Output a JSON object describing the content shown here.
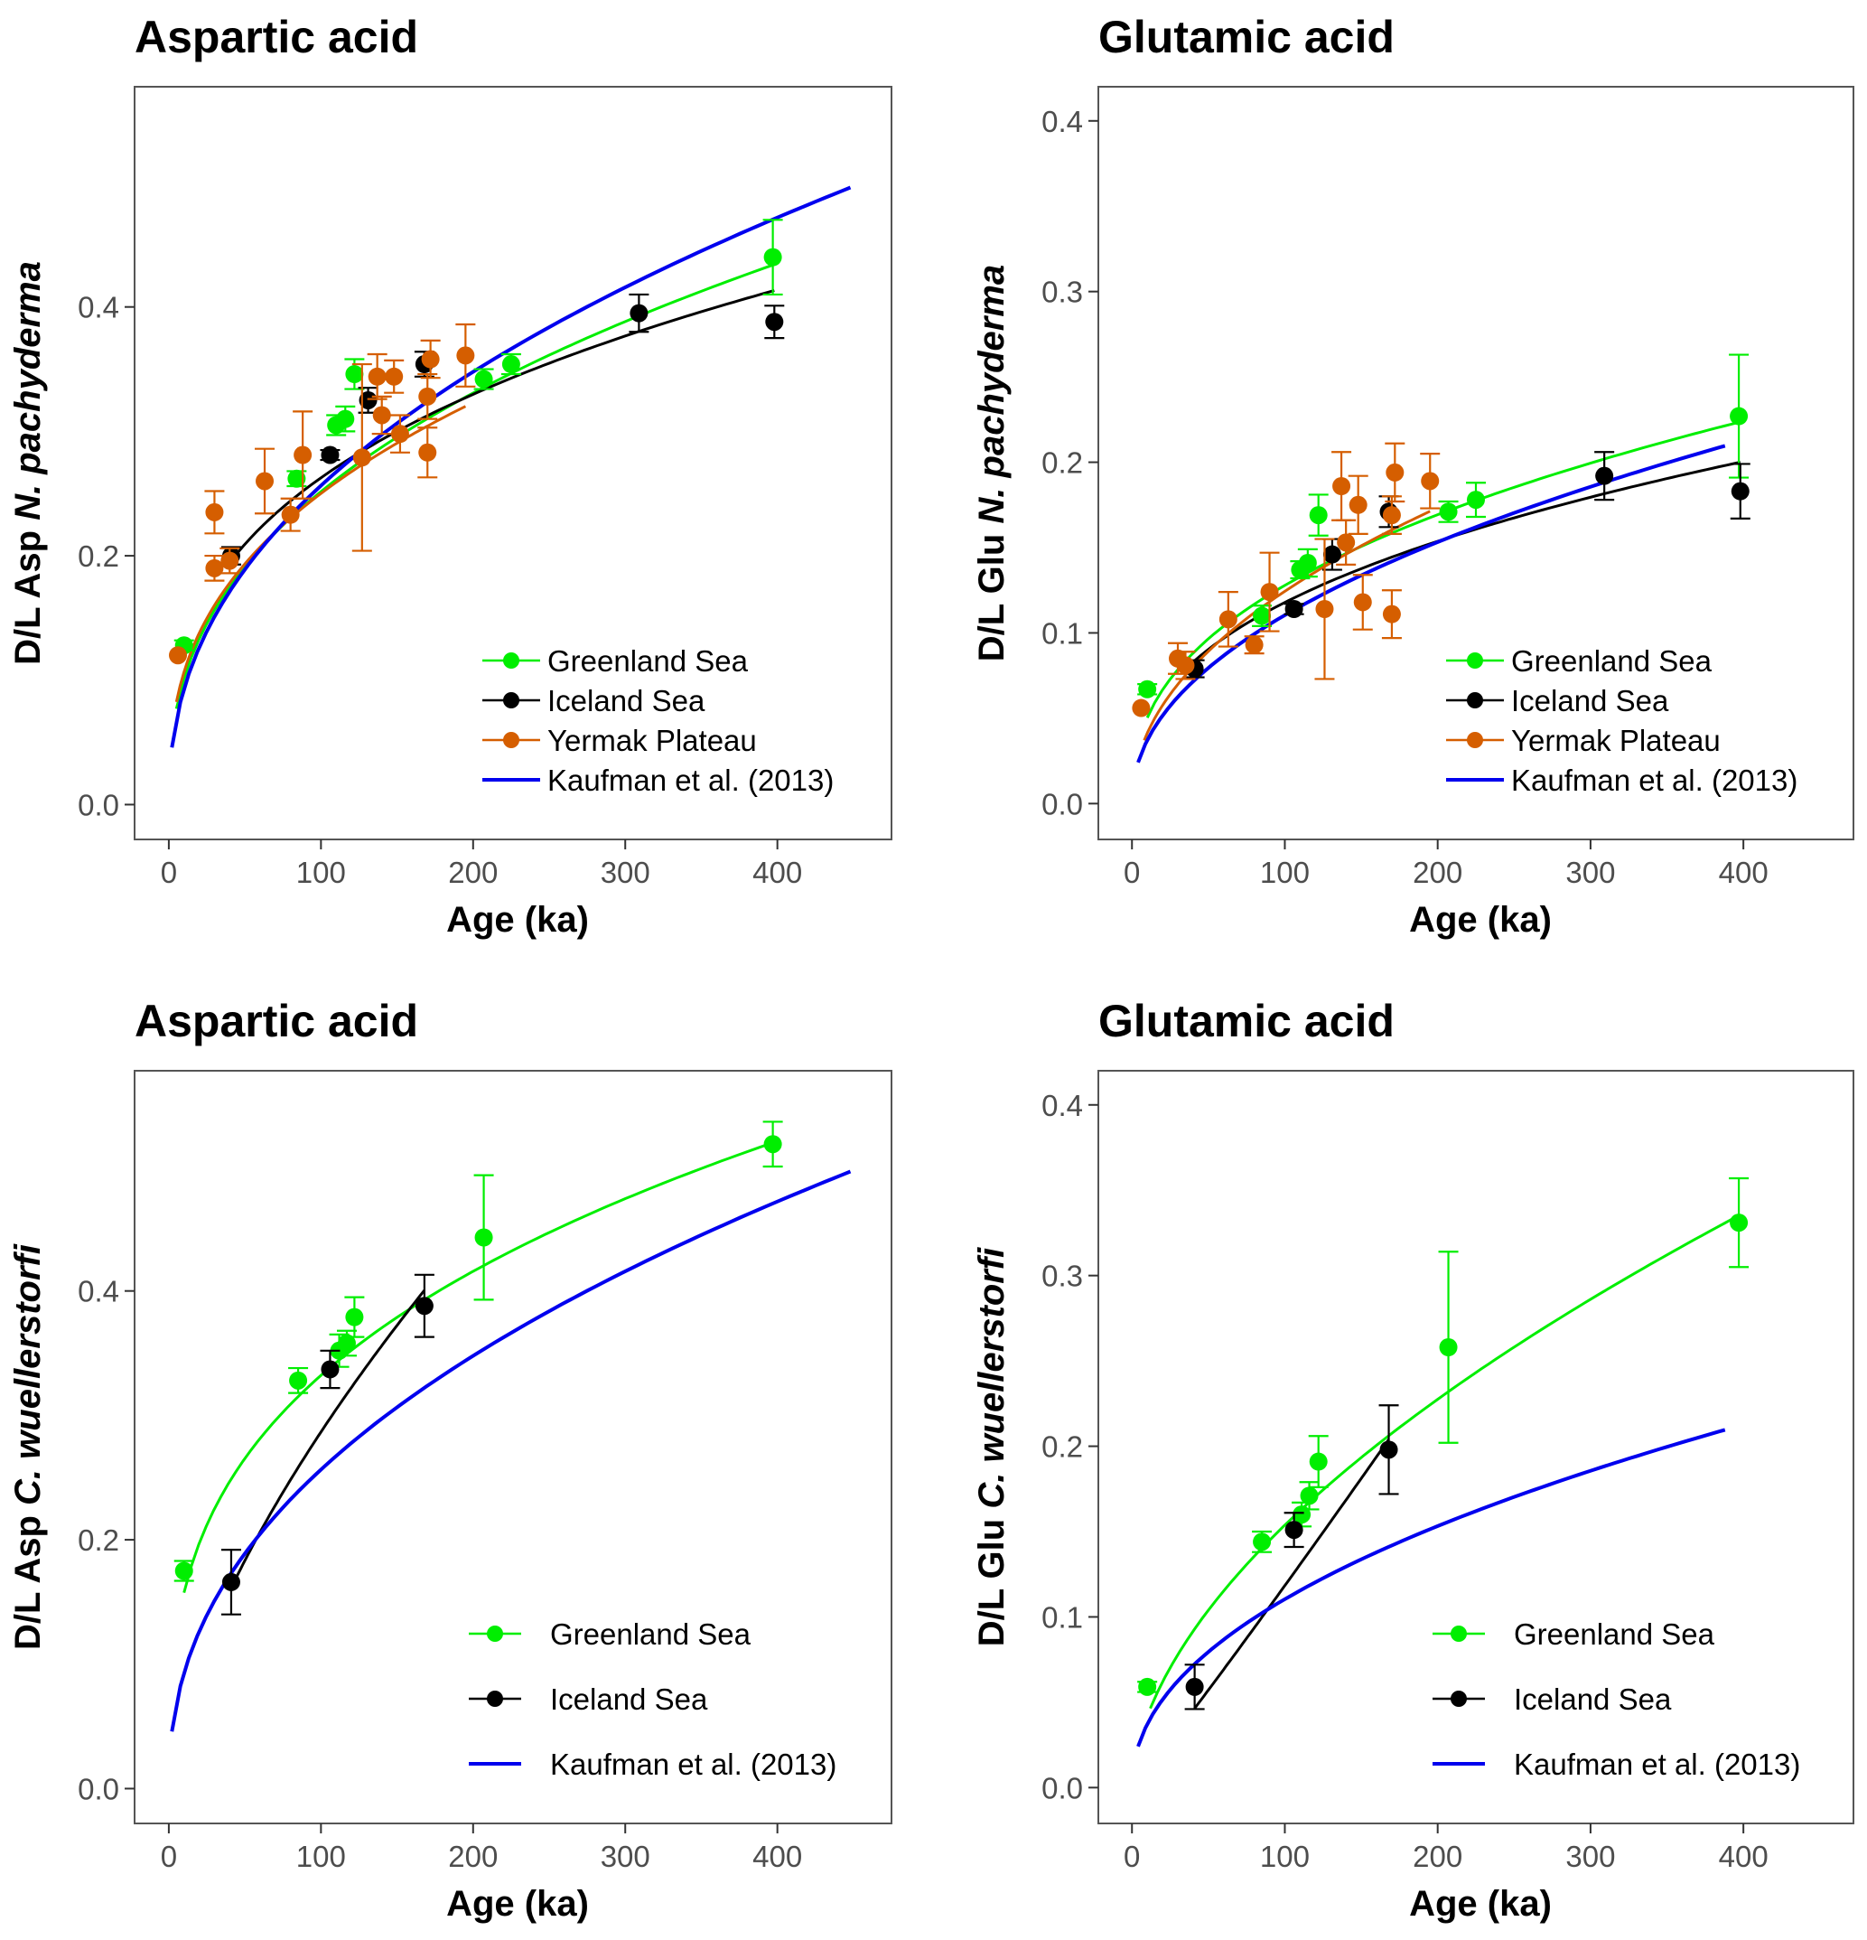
{
  "colors": {
    "greenland": "#00ee00",
    "iceland": "#000000",
    "yermak": "#d55e00",
    "kaufman": "#0000ee",
    "tick_text": "#4d4d4d",
    "frame": "#555555"
  },
  "chart_data": [
    {
      "id": "asp-npachyderma",
      "type": "scatter",
      "title": "Aspartic acid",
      "xlabel": "Age (ka)",
      "ylabel_prefix": "D/L Asp ",
      "ylabel_species": "N. pachyderma",
      "xlim": [
        -22.5,
        475
      ],
      "ylim": [
        -0.028,
        0.577
      ],
      "xticks": [
        0,
        100,
        200,
        300,
        400
      ],
      "xtick_labels": [
        "0",
        "100",
        "200",
        "300",
        "400"
      ],
      "yticks": [
        0.0,
        0.2,
        0.4
      ],
      "ytick_labels": [
        "0.0",
        "0.2",
        "0.4"
      ],
      "legend_position": "bottom-right",
      "legend_style": "compact",
      "series": [
        {
          "name": "Greenland Sea",
          "key": "greenland",
          "kind": "points",
          "points": [
            {
              "x": 10,
              "y": 0.128,
              "err": 0.004
            },
            {
              "x": 84,
              "y": 0.262,
              "err": 0.006
            },
            {
              "x": 110,
              "y": 0.305,
              "err": 0.008
            },
            {
              "x": 116,
              "y": 0.31,
              "err": 0.01
            },
            {
              "x": 122,
              "y": 0.346,
              "err": 0.012
            },
            {
              "x": 207,
              "y": 0.342,
              "err": 0.008
            },
            {
              "x": 225,
              "y": 0.354,
              "err": 0.008
            },
            {
              "x": 397,
              "y": 0.44,
              "err": 0.03
            }
          ],
          "fit": {
            "a": 0.0408,
            "b": 0.395,
            "x0": 5,
            "x1": 397
          }
        },
        {
          "name": "Iceland Sea",
          "key": "iceland",
          "kind": "points",
          "points": [
            {
              "x": 41,
              "y": 0.2,
              "err": 0.007
            },
            {
              "x": 106,
              "y": 0.281,
              "err": 0.004
            },
            {
              "x": 131,
              "y": 0.325,
              "err": 0.01
            },
            {
              "x": 168,
              "y": 0.354,
              "err": 0.01
            },
            {
              "x": 309,
              "y": 0.395,
              "err": 0.015
            },
            {
              "x": 398,
              "y": 0.388,
              "err": 0.013
            }
          ],
          "fit": {
            "a": 0.058,
            "b": 0.328,
            "x0": 40,
            "x1": 398
          }
        },
        {
          "name": "Yermak Plateau",
          "key": "yermak",
          "kind": "points",
          "points": [
            {
              "x": 6,
              "y": 0.12,
              "err": 0.0
            },
            {
              "x": 30,
              "y": 0.19,
              "err": 0.01
            },
            {
              "x": 30,
              "y": 0.235,
              "err": 0.017
            },
            {
              "x": 40,
              "y": 0.196,
              "err": 0.01
            },
            {
              "x": 63,
              "y": 0.26,
              "err": 0.026
            },
            {
              "x": 80,
              "y": 0.233,
              "err": 0.013
            },
            {
              "x": 88,
              "y": 0.281,
              "err": 0.035
            },
            {
              "x": 127,
              "y": 0.279,
              "err": 0.075
            },
            {
              "x": 137,
              "y": 0.344,
              "err": 0.018
            },
            {
              "x": 140,
              "y": 0.313,
              "err": 0.015
            },
            {
              "x": 148,
              "y": 0.344,
              "err": 0.013
            },
            {
              "x": 152,
              "y": 0.298,
              "err": 0.015
            },
            {
              "x": 170,
              "y": 0.283,
              "err": 0.02
            },
            {
              "x": 170,
              "y": 0.328,
              "err": 0.018
            },
            {
              "x": 172,
              "y": 0.358,
              "err": 0.015
            },
            {
              "x": 195,
              "y": 0.361,
              "err": 0.025
            }
          ],
          "fit": {
            "a": 0.0455,
            "b": 0.37,
            "x0": 5,
            "x1": 195
          }
        },
        {
          "name": "Kaufman et al. (2013)",
          "key": "kaufman",
          "kind": "curve",
          "fit": {
            "a": 0.0338,
            "b": 0.44,
            "x0": 2,
            "x1": 448
          }
        }
      ]
    },
    {
      "id": "glu-npachyderma",
      "type": "scatter",
      "title": "Glutamic acid",
      "xlabel": "Age (ka)",
      "ylabel_prefix": "D/L Glu ",
      "ylabel_species": "N. pachyderma",
      "xlim": [
        -22,
        472
      ],
      "ylim": [
        -0.021,
        0.42
      ],
      "xticks": [
        0,
        100,
        200,
        300,
        400
      ],
      "xtick_labels": [
        "0",
        "100",
        "200",
        "300",
        "400"
      ],
      "yticks": [
        0.0,
        0.1,
        0.2,
        0.3,
        0.4
      ],
      "ytick_labels": [
        "0.0",
        "0.1",
        "0.2",
        "0.3",
        "0.4"
      ],
      "legend_position": "bottom-right",
      "legend_style": "compact",
      "series": [
        {
          "name": "Greenland Sea",
          "key": "greenland",
          "kind": "points",
          "points": [
            {
              "x": 10,
              "y": 0.067,
              "err": 0.003
            },
            {
              "x": 85,
              "y": 0.11,
              "err": 0.006
            },
            {
              "x": 110,
              "y": 0.137,
              "err": 0.005
            },
            {
              "x": 115,
              "y": 0.141,
              "err": 0.008
            },
            {
              "x": 122,
              "y": 0.169,
              "err": 0.012
            },
            {
              "x": 207,
              "y": 0.171,
              "err": 0.006
            },
            {
              "x": 225,
              "y": 0.178,
              "err": 0.01
            },
            {
              "x": 397,
              "y": 0.227,
              "err": 0.036
            }
          ],
          "fit": {
            "a": 0.0198,
            "b": 0.405,
            "x0": 10,
            "x1": 397
          }
        },
        {
          "name": "Iceland Sea",
          "key": "iceland",
          "kind": "points",
          "points": [
            {
              "x": 41,
              "y": 0.079,
              "err": 0.005
            },
            {
              "x": 106,
              "y": 0.114,
              "err": 0.003
            },
            {
              "x": 131,
              "y": 0.146,
              "err": 0.009
            },
            {
              "x": 168,
              "y": 0.171,
              "err": 0.009
            },
            {
              "x": 309,
              "y": 0.192,
              "err": 0.014
            },
            {
              "x": 398,
              "y": 0.183,
              "err": 0.016
            }
          ],
          "fit": {
            "a": 0.0202,
            "b": 0.383,
            "x0": 40,
            "x1": 398
          }
        },
        {
          "name": "Yermak Plateau",
          "key": "yermak",
          "kind": "points",
          "points": [
            {
              "x": 6,
              "y": 0.056,
              "err": 0.0
            },
            {
              "x": 30,
              "y": 0.085,
              "err": 0.009
            },
            {
              "x": 35,
              "y": 0.081,
              "err": 0.008
            },
            {
              "x": 63,
              "y": 0.108,
              "err": 0.016
            },
            {
              "x": 80,
              "y": 0.093,
              "err": 0.005
            },
            {
              "x": 90,
              "y": 0.124,
              "err": 0.023
            },
            {
              "x": 126,
              "y": 0.114,
              "err": 0.041
            },
            {
              "x": 137,
              "y": 0.186,
              "err": 0.02
            },
            {
              "x": 140,
              "y": 0.153,
              "err": 0.013
            },
            {
              "x": 148,
              "y": 0.175,
              "err": 0.017
            },
            {
              "x": 151,
              "y": 0.118,
              "err": 0.016
            },
            {
              "x": 170,
              "y": 0.111,
              "err": 0.014
            },
            {
              "x": 170,
              "y": 0.169,
              "err": 0.011
            },
            {
              "x": 172,
              "y": 0.194,
              "err": 0.017
            },
            {
              "x": 195,
              "y": 0.189,
              "err": 0.016
            }
          ],
          "fit": {
            "a": 0.0137,
            "b": 0.479,
            "x0": 8,
            "x1": 195
          }
        },
        {
          "name": "Kaufman et al. (2013)",
          "key": "kaufman",
          "kind": "curve",
          "fit": {
            "a": 0.0125,
            "b": 0.473,
            "x0": 4,
            "x1": 388
          }
        }
      ]
    },
    {
      "id": "asp-cwuellerstorfi",
      "type": "scatter",
      "title": "Aspartic acid",
      "xlabel": "Age (ka)",
      "ylabel_prefix": "D/L Asp ",
      "ylabel_species": "C. wuellerstorfi",
      "xlim": [
        -22.5,
        475
      ],
      "ylim": [
        -0.028,
        0.577
      ],
      "xticks": [
        0,
        100,
        200,
        300,
        400
      ],
      "xtick_labels": [
        "0",
        "100",
        "200",
        "300",
        "400"
      ],
      "yticks": [
        0.0,
        0.2,
        0.4
      ],
      "ytick_labels": [
        "0.0",
        "0.2",
        "0.4"
      ],
      "legend_position": "bottom-right",
      "legend_style": "spaced",
      "series": [
        {
          "name": "Greenland Sea",
          "key": "greenland",
          "kind": "points",
          "points": [
            {
              "x": 10,
              "y": 0.175,
              "err": 0.008
            },
            {
              "x": 85,
              "y": 0.328,
              "err": 0.01
            },
            {
              "x": 112,
              "y": 0.352,
              "err": 0.013
            },
            {
              "x": 117,
              "y": 0.358,
              "err": 0.01
            },
            {
              "x": 122,
              "y": 0.379,
              "err": 0.016
            },
            {
              "x": 207,
              "y": 0.443,
              "err": 0.05
            },
            {
              "x": 397,
              "y": 0.518,
              "err": 0.018
            }
          ],
          "fit": {
            "a": 0.0747,
            "b": 0.324,
            "x0": 10,
            "x1": 397
          }
        },
        {
          "name": "Iceland Sea",
          "key": "iceland",
          "kind": "points",
          "points": [
            {
              "x": 41,
              "y": 0.166,
              "err": 0.026
            },
            {
              "x": 106,
              "y": 0.337,
              "err": 0.015
            },
            {
              "x": 168,
              "y": 0.388,
              "err": 0.025
            }
          ],
          "fit": {
            "a": 0.0147,
            "b": 0.645,
            "x0": 41,
            "x1": 168
          }
        },
        {
          "name": "Kaufman et al. (2013)",
          "key": "kaufman",
          "kind": "curve",
          "fit": {
            "a": 0.0338,
            "b": 0.44,
            "x0": 2,
            "x1": 448
          }
        }
      ]
    },
    {
      "id": "glu-cwuellerstorfi",
      "type": "scatter",
      "title": "Glutamic acid",
      "xlabel": "Age (ka)",
      "ylabel_prefix": "D/L Glu ",
      "ylabel_species": "C. wuellerstorfi",
      "xlim": [
        -22,
        472
      ],
      "ylim": [
        -0.021,
        0.42
      ],
      "xticks": [
        0,
        100,
        200,
        300,
        400
      ],
      "xtick_labels": [
        "0",
        "100",
        "200",
        "300",
        "400"
      ],
      "yticks": [
        0.0,
        0.1,
        0.2,
        0.3,
        0.4
      ],
      "ytick_labels": [
        "0.0",
        "0.1",
        "0.2",
        "0.3",
        "0.4"
      ],
      "legend_position": "bottom-right",
      "legend_style": "spaced",
      "series": [
        {
          "name": "Greenland Sea",
          "key": "greenland",
          "kind": "points",
          "points": [
            {
              "x": 10,
              "y": 0.059,
              "err": 0.003
            },
            {
              "x": 85,
              "y": 0.144,
              "err": 0.006
            },
            {
              "x": 111,
              "y": 0.16,
              "err": 0.007
            },
            {
              "x": 116,
              "y": 0.171,
              "err": 0.008
            },
            {
              "x": 122,
              "y": 0.191,
              "err": 0.015
            },
            {
              "x": 207,
              "y": 0.258,
              "err": 0.056
            },
            {
              "x": 397,
              "y": 0.331,
              "err": 0.026
            }
          ],
          "fit": {
            "a": 0.0114,
            "b": 0.565,
            "x0": 12,
            "x1": 397
          }
        },
        {
          "name": "Iceland Sea",
          "key": "iceland",
          "kind": "points",
          "points": [
            {
              "x": 41,
              "y": 0.059,
              "err": 0.013
            },
            {
              "x": 106,
              "y": 0.151,
              "err": 0.01
            },
            {
              "x": 168,
              "y": 0.198,
              "err": 0.026
            }
          ],
          "fit": {
            "a": 0.00094,
            "b": 1.05,
            "x0": 41,
            "x1": 168
          }
        },
        {
          "name": "Kaufman et al. (2013)",
          "key": "kaufman",
          "kind": "curve",
          "fit": {
            "a": 0.0125,
            "b": 0.473,
            "x0": 4,
            "x1": 388
          }
        }
      ]
    }
  ]
}
